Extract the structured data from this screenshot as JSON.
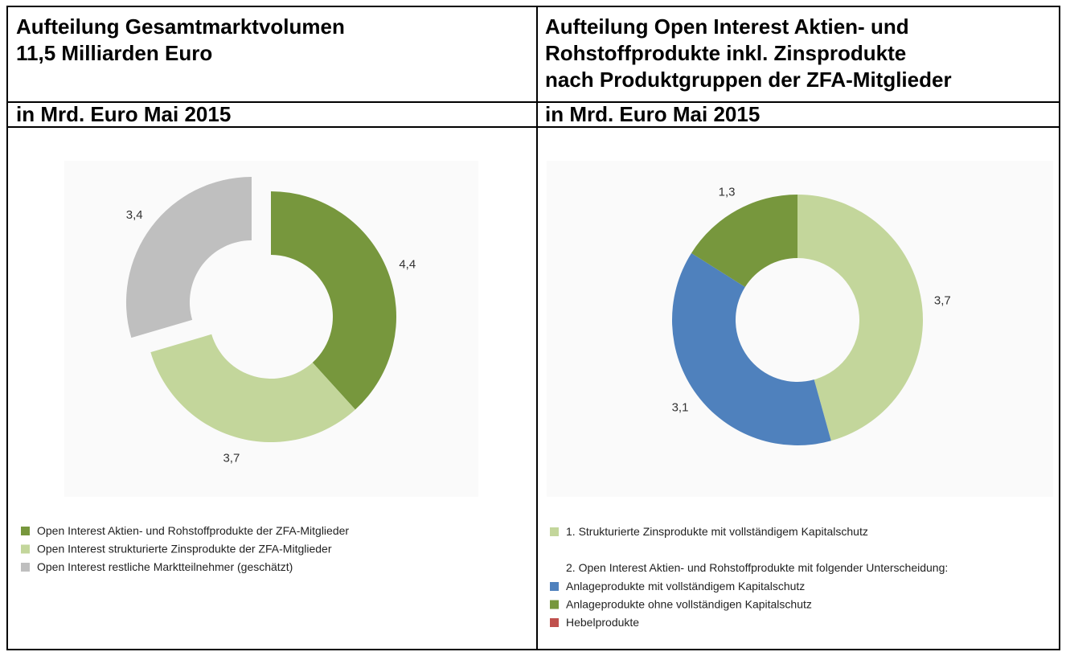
{
  "chart_data": [
    {
      "type": "donut",
      "title": [
        "Aufteilung Gesamtmarktvolumen",
        "11,5 Milliarden Euro"
      ],
      "subtitle": "in Mrd. Euro Mai 2015",
      "explode": [
        false,
        false,
        true
      ],
      "series": [
        {
          "name": "Open Interest Aktien- und Rohstoffprodukte der ZFA-Mitglieder",
          "color": "#77973d"
        },
        {
          "name": "Open Interest strukturierte Zinsprodukte der ZFA-Mitglieder",
          "color": "#c3d69b"
        },
        {
          "name": "Open Interest restliche Marktteilnehmer (geschätzt)",
          "color": "#bfbfbf"
        }
      ],
      "values": [
        4.4,
        3.7,
        3.4
      ],
      "value_labels": [
        "4,4",
        "3,7",
        "3,4"
      ]
    },
    {
      "type": "donut",
      "title": [
        "Aufteilung Open Interest Aktien- und",
        "Rohstoffprodukte inkl. Zinsprodukte",
        "nach Produktgruppen der ZFA-Mitglieder"
      ],
      "subtitle": "in Mrd. Euro Mai 2015",
      "legend_note": "2. Open Interest Aktien- und Rohstoffprodukte mit folgender Unterscheidung:",
      "series": [
        {
          "name": "1. Strukturierte Zinsprodukte mit vollständigem Kapitalschutz",
          "color": "#c3d69b"
        },
        {
          "name": "Anlageprodukte mit vollständigem Kapitalschutz",
          "color": "#4f81bd"
        },
        {
          "name": "Anlageprodukte ohne vollständigen Kapitalschutz",
          "color": "#77973d"
        },
        {
          "name": "Hebelprodukte",
          "color": "#c0504d"
        }
      ],
      "values": [
        3.7,
        3.1,
        1.3,
        0
      ],
      "value_labels": [
        "3,7",
        "3,1",
        "1,3",
        null
      ]
    }
  ]
}
